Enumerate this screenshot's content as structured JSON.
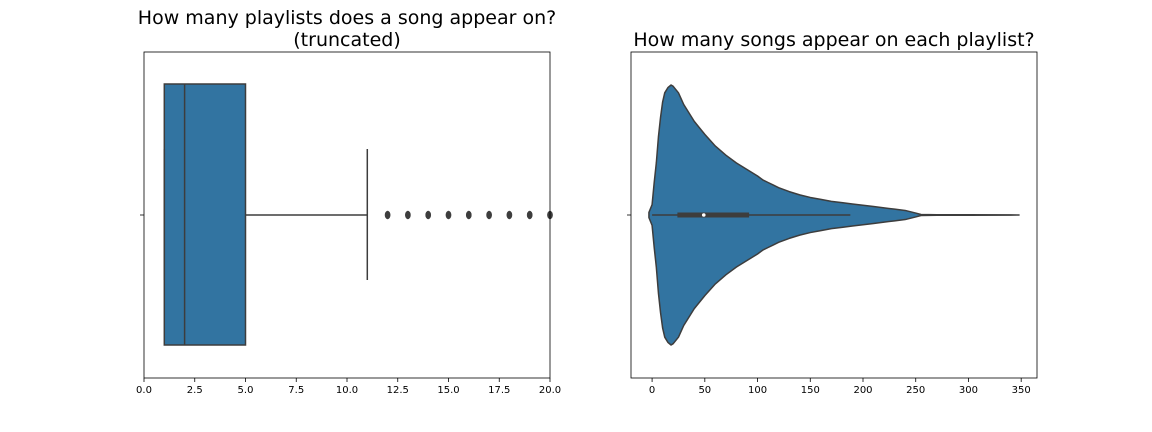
{
  "chart_data": [
    {
      "type": "boxplot",
      "title_line1": "How many playlists does a song appear on?",
      "title_line2": "(truncated)",
      "xlim": [
        0,
        20
      ],
      "xticks": [
        "0.0",
        "2.5",
        "5.0",
        "7.5",
        "10.0",
        "12.5",
        "15.0",
        "17.5",
        "20.0"
      ],
      "xtick_values": [
        0,
        2.5,
        5,
        7.5,
        10,
        12.5,
        15,
        17.5,
        20
      ],
      "box": {
        "whisker_low": 1,
        "q1": 1,
        "median": 2,
        "q3": 5,
        "whisker_high": 11
      },
      "outliers": [
        12,
        13,
        14,
        15,
        16,
        17,
        18,
        19,
        20
      ],
      "color": "#3274a1"
    },
    {
      "type": "violin",
      "title": "How many songs appear on each playlist?",
      "xlim": [
        -20,
        365
      ],
      "xticks": [
        "0",
        "50",
        "100",
        "150",
        "200",
        "250",
        "300",
        "350"
      ],
      "xtick_values": [
        0,
        50,
        100,
        150,
        200,
        250,
        300,
        350
      ],
      "box": {
        "whisker_low": 0,
        "q1": 24,
        "median": 49,
        "q3": 92,
        "whisker_high": 188
      },
      "density": [
        [
          -3,
          0.02
        ],
        [
          0,
          0.08
        ],
        [
          2,
          0.25
        ],
        [
          4,
          0.4
        ],
        [
          6,
          0.6
        ],
        [
          8,
          0.75
        ],
        [
          10,
          0.87
        ],
        [
          12,
          0.94
        ],
        [
          15,
          0.98
        ],
        [
          18,
          1.0
        ],
        [
          20,
          0.99
        ],
        [
          25,
          0.94
        ],
        [
          30,
          0.85
        ],
        [
          40,
          0.72
        ],
        [
          50,
          0.62
        ],
        [
          60,
          0.53
        ],
        [
          70,
          0.46
        ],
        [
          80,
          0.4
        ],
        [
          90,
          0.35
        ],
        [
          100,
          0.3
        ],
        [
          105,
          0.27
        ],
        [
          110,
          0.25
        ],
        [
          115,
          0.23
        ],
        [
          120,
          0.21
        ],
        [
          130,
          0.18
        ],
        [
          140,
          0.155
        ],
        [
          150,
          0.135
        ],
        [
          160,
          0.12
        ],
        [
          170,
          0.105
        ],
        [
          180,
          0.095
        ],
        [
          190,
          0.085
        ],
        [
          200,
          0.075
        ],
        [
          210,
          0.065
        ],
        [
          220,
          0.055
        ],
        [
          230,
          0.045
        ],
        [
          240,
          0.035
        ],
        [
          250,
          0.015
        ],
        [
          255,
          0.004
        ],
        [
          270,
          0.002
        ],
        [
          300,
          0.002
        ],
        [
          340,
          0.001
        ],
        [
          348,
          0.0
        ]
      ],
      "color": "#3274a1"
    }
  ]
}
